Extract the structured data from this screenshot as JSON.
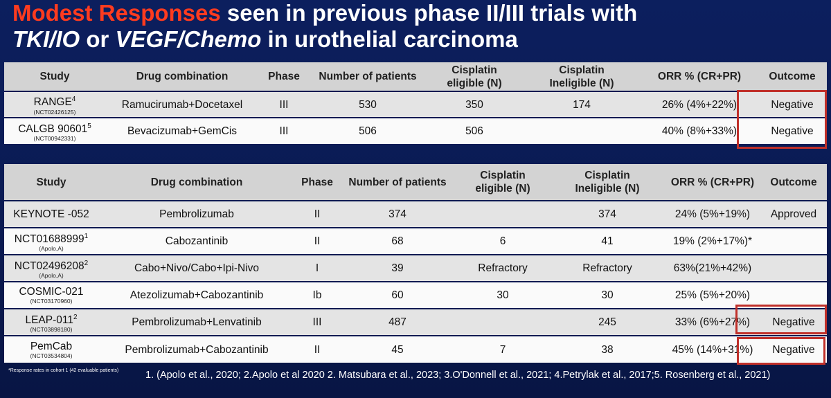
{
  "title": {
    "accent": "Modest Responses",
    "line1_rest": " seen in previous phase II/III trials with",
    "line2_italic1": "TKI/IO",
    "line2_mid1": " or ",
    "line2_italic2": "VEGF/Chemo",
    "line2_rest": " in urothelial carcinoma"
  },
  "table1": {
    "headers": {
      "study": "Study",
      "drug": "Drug combination",
      "phase": "Phase",
      "patients": "Number of patients",
      "cis_eligible_l1": "Cisplatin",
      "cis_eligible_l2": "eligible (N)",
      "cis_ineligible_l1": "Cisplatin",
      "cis_ineligible_l2": "Ineligible (N)",
      "orr": "ORR % (CR+PR)",
      "outcome": "Outcome"
    },
    "rows": [
      {
        "study": "RANGE",
        "sup": "4",
        "nct": "(NCT02426125)",
        "drug": "Ramucirumab+Docetaxel",
        "phase": "III",
        "patients": "530",
        "eligible": "350",
        "ineligible": "174",
        "orr": "26% (4%+22%)",
        "outcome": "Negative"
      },
      {
        "study": "CALGB 90601",
        "sup": "5",
        "nct": "(NCT00942331)",
        "drug": "Bevacizumab+GemCis",
        "phase": "III",
        "patients": "506",
        "eligible": "506",
        "ineligible": "",
        "orr": "40% (8%+33%)",
        "outcome": "Negative"
      }
    ]
  },
  "table2": {
    "headers": {
      "study": "Study",
      "drug": "Drug combination",
      "phase": "Phase",
      "patients": "Number of patients",
      "cis_eligible_l1": "Cisplatin",
      "cis_eligible_l2": "eligible (N)",
      "cis_ineligible_l1": "Cisplatin",
      "cis_ineligible_l2": "Ineligible (N)",
      "orr": "ORR % (CR+PR)",
      "outcome": "Outcome"
    },
    "rows": [
      {
        "study": "KEYNOTE -052",
        "sup": "",
        "nct": "",
        "drug": "Pembrolizumab",
        "phase": "II",
        "patients": "374",
        "eligible": "",
        "ineligible": "374",
        "orr": "24% (5%+19%)",
        "outcome": "Approved"
      },
      {
        "study": "NCT01688999",
        "sup": "1",
        "nct": "(Apolo,A)",
        "drug": "Cabozantinib",
        "phase": "II",
        "patients": "68",
        "eligible": "6",
        "ineligible": "41",
        "orr": "19% (2%+17%)*",
        "outcome": ""
      },
      {
        "study": "NCT02496208",
        "sup": "2",
        "nct": "(Apolo,A)",
        "drug": "Cabo+Nivo/Cabo+Ipi-Nivo",
        "phase": "I",
        "patients": "39",
        "eligible": "Refractory",
        "ineligible": "Refractory",
        "orr": "63%(21%+42%)",
        "outcome": ""
      },
      {
        "study": "COSMIC-021",
        "sup": "",
        "nct": "(NCT03170960)",
        "drug": "Atezolizumab+Cabozantinib",
        "phase": "Ib",
        "patients": "60",
        "eligible": "30",
        "ineligible": "30",
        "orr": "25% (5%+20%)",
        "outcome": ""
      },
      {
        "study": "LEAP-011",
        "sup": "2",
        "nct": "(NCT03898180)",
        "drug": "Pembrolizumab+Lenvatinib",
        "phase": "III",
        "patients": "487",
        "eligible": "",
        "ineligible": "245",
        "orr": "33% (6%+27%)",
        "outcome": "Negative"
      },
      {
        "study": "PemCab",
        "sup": "",
        "nct": "(NCT03534804)",
        "drug": "Pembrolizumab+Cabozantinib",
        "phase": "II",
        "patients": "45",
        "eligible": "7",
        "ineligible": "38",
        "orr": "45% (14%+31%)",
        "outcome": "Negative"
      }
    ]
  },
  "footnotes": {
    "left": "*Response rates in cohort 1 (42 evaluable patients)",
    "right": "1. (Apolo et al., 2020; 2.Apolo et al 2020 2. Matsubara et al., 2023; 3.O'Donnell et al., 2021; 4.Petrylak et al., 2017;5. Rosenberg et al., 2021)"
  },
  "colors": {
    "accent_red": "#ff3b1f",
    "box_red": "#c0302a",
    "background_navy": "#0a1a52"
  }
}
